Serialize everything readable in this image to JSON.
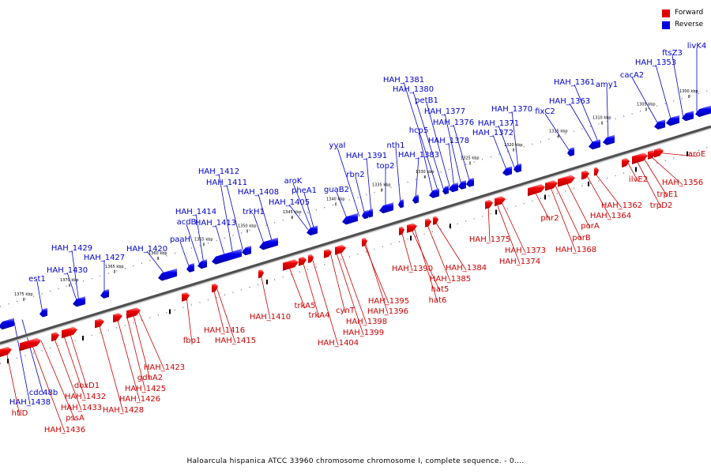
{
  "legend": [
    {
      "label": "Forward",
      "color": "#e00000"
    },
    {
      "label": "Reverse",
      "color": "#0000e0"
    }
  ],
  "caption": "Haloarcula hispanica ATCC 33960 chromosome chromosome I, complete sequence. - 0....",
  "ticks": [
    "1375 kbp",
    "1370 kbp",
    "1365 kbp",
    "1360 kbp",
    "1355 kbp",
    "1350 kbp",
    "1345 kbp",
    "1340 kbp",
    "1335 kbp",
    "1330 kbp",
    "1325 kbp",
    "1320 kbp",
    "1315 kbp",
    "1310 kbp",
    "1305 kbp",
    "1300 kbp"
  ],
  "reverse_genes": [
    "HAH_1438",
    "cdc48b",
    "est1",
    "HAH_1430",
    "HAH_1429",
    "HAH_1427",
    "HAH_1420",
    "paaH",
    "acdB",
    "HAH_1414",
    "HAH_1413",
    "HAH_1412",
    "HAH_1411",
    "trkH1",
    "HAH_1408",
    "HAH_1405",
    "aroK",
    "pheA1",
    "guaB2",
    "yyaI",
    "rbn2",
    "HAH_1391",
    "top2",
    "nth1",
    "HAH_1383",
    "hcp5",
    "HAH_1381",
    "HAH_1380",
    "petB1",
    "HAH_1378",
    "HAH_1377",
    "HAH_1376",
    "HAH_1372",
    "HAH_1371",
    "HAH_1370",
    "fixC2",
    "HAH_1363",
    "HAH_1361",
    "amy1",
    "cacA2",
    "HAH_1353",
    "ftsZ3",
    "livK4"
  ],
  "forward_genes": [
    "htlD",
    "HAH_1436",
    "pssA",
    "HAH_1433",
    "HAH_1432",
    "doxD1",
    "HAH_1428",
    "HAH_1426",
    "HAH_1425",
    "gdhA2",
    "HAH_1423",
    "fbp1",
    "HAH_1416",
    "HAH_1415",
    "HAH_1410",
    "trkA5",
    "trkA4",
    "HAH_1404",
    "cynT",
    "HAH_1399",
    "HAH_1398",
    "HAH_1396",
    "HAH_1395",
    "HAH_1390",
    "hat5",
    "hat6",
    "HAH_1385",
    "HAH_1384",
    "HAH_1375",
    "HAH_1374",
    "HAH_1373",
    "phr2",
    "HAH_1368",
    "porB",
    "porA",
    "HAH_1364",
    "HAH_1362",
    "ilvE2",
    "trpD2",
    "trpE1",
    "HAH_1356",
    "aroE"
  ]
}
